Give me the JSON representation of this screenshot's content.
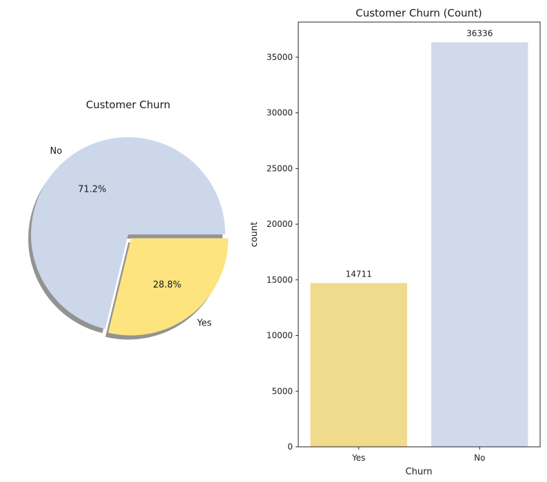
{
  "chart_data": [
    {
      "type": "pie",
      "title": "Customer Churn",
      "slices": [
        {
          "label": "No",
          "value": 71.2,
          "pct_label": "71.2%",
          "color": "#ccd7ea"
        },
        {
          "label": "Yes",
          "value": 28.8,
          "pct_label": "28.8%",
          "color": "#fee47f"
        }
      ],
      "exploded": "Yes",
      "shadow": true
    },
    {
      "type": "bar",
      "title": "Customer Churn (Count)",
      "xlabel": "Churn",
      "ylabel": "count",
      "categories": [
        "Yes",
        "No"
      ],
      "values": [
        14711,
        36336
      ],
      "data_labels": [
        "14711",
        "36336"
      ],
      "colors": [
        "#f0da8b",
        "#d2d9ea"
      ],
      "ylim": [
        0,
        38154
      ],
      "yticks": [
        0,
        5000,
        10000,
        15000,
        20000,
        25000,
        30000,
        35000
      ],
      "grid": false
    }
  ]
}
